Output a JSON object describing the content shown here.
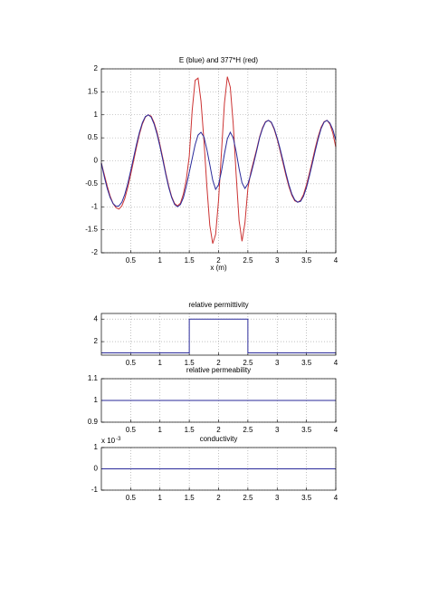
{
  "chart_data": [
    {
      "type": "line",
      "title": "E (blue) and 377*H (red)",
      "x_label": "x (m)",
      "x": [
        0,
        0.05,
        0.1,
        0.15,
        0.2,
        0.25,
        0.3,
        0.35,
        0.4,
        0.45,
        0.5,
        0.55,
        0.6,
        0.65,
        0.7,
        0.75,
        0.8,
        0.85,
        0.9,
        0.95,
        1,
        1.05,
        1.1,
        1.15,
        1.2,
        1.25,
        1.3,
        1.35,
        1.4,
        1.45,
        1.5,
        1.55,
        1.6,
        1.65,
        1.7,
        1.75,
        1.8,
        1.85,
        1.9,
        1.95,
        2,
        2.05,
        2.1,
        2.15,
        2.2,
        2.25,
        2.3,
        2.35,
        2.4,
        2.45,
        2.5,
        2.55,
        2.6,
        2.65,
        2.7,
        2.75,
        2.8,
        2.85,
        2.9,
        2.95,
        3,
        3.05,
        3.1,
        3.15,
        3.2,
        3.25,
        3.3,
        3.35,
        3.4,
        3.45,
        3.5,
        3.55,
        3.6,
        3.65,
        3.7,
        3.75,
        3.8,
        3.85,
        3.9,
        3.95,
        4
      ],
      "series": [
        {
          "color": "#cc3333",
          "values": [
            -0.05,
            -0.3,
            -0.55,
            -0.77,
            -0.93,
            -1.02,
            -1.05,
            -0.98,
            -0.82,
            -0.58,
            -0.3,
            0,
            0.3,
            0.58,
            0.8,
            0.95,
            1,
            0.97,
            0.83,
            0.62,
            0.35,
            0.05,
            -0.27,
            -0.55,
            -0.78,
            -0.93,
            -0.98,
            -0.92,
            -0.72,
            -0.4,
            0.1,
            1.1,
            1.75,
            1.8,
            1.3,
            0.45,
            -0.55,
            -1.4,
            -1.8,
            -1.6,
            -0.85,
            0.2,
            1.25,
            1.83,
            1.6,
            0.8,
            -0.3,
            -1.3,
            -1.75,
            -1.35,
            -0.6,
            -0.25,
            0,
            0.25,
            0.52,
            0.72,
            0.85,
            0.88,
            0.83,
            0.68,
            0.47,
            0.22,
            -0.05,
            -0.32,
            -0.56,
            -0.75,
            -0.87,
            -0.9,
            -0.86,
            -0.73,
            -0.52,
            -0.27,
            0,
            0.28,
            0.53,
            0.73,
            0.85,
            0.88,
            0.8,
            0.6,
            0.3
          ]
        },
        {
          "color": "#2a2a9a",
          "values": [
            -0.05,
            -0.35,
            -0.6,
            -0.8,
            -0.93,
            -0.99,
            -0.98,
            -0.9,
            -0.73,
            -0.5,
            -0.22,
            0.07,
            0.36,
            0.62,
            0.83,
            0.96,
            1,
            0.95,
            0.8,
            0.58,
            0.31,
            0.01,
            -0.3,
            -0.58,
            -0.8,
            -0.95,
            -1,
            -0.95,
            -0.8,
            -0.55,
            -0.25,
            0.05,
            0.35,
            0.56,
            0.62,
            0.52,
            0.25,
            -0.08,
            -0.42,
            -0.62,
            -0.52,
            -0.22,
            0.15,
            0.48,
            0.62,
            0.5,
            0.2,
            -0.17,
            -0.48,
            -0.6,
            -0.5,
            -0.3,
            -0.05,
            0.22,
            0.5,
            0.7,
            0.84,
            0.88,
            0.84,
            0.7,
            0.5,
            0.26,
            0,
            -0.27,
            -0.52,
            -0.72,
            -0.85,
            -0.9,
            -0.88,
            -0.77,
            -0.58,
            -0.33,
            -0.06,
            0.22,
            0.48,
            0.7,
            0.84,
            0.88,
            0.82,
            0.68,
            0.45
          ]
        }
      ],
      "xlim": [
        0,
        4
      ],
      "xticks": [
        0.5,
        1,
        1.5,
        2,
        2.5,
        3,
        3.5,
        4
      ],
      "ylim": [
        -2,
        2
      ],
      "yticks": [
        -2,
        -1.5,
        -1,
        -0.5,
        0,
        0.5,
        1,
        1.5,
        2
      ],
      "grid": true
    },
    {
      "type": "line",
      "title": "relative permittivity",
      "x": [
        0,
        1.5,
        1.5,
        2.5,
        2.5,
        4
      ],
      "series": [
        {
          "color": "#2a2a9a",
          "values": [
            1,
            1,
            4,
            4,
            1,
            1
          ]
        }
      ],
      "xlim": [
        0,
        4
      ],
      "xticks": [
        0.5,
        1,
        1.5,
        2,
        2.5,
        3,
        3.5,
        4
      ],
      "ylim": [
        0.8,
        4.5
      ],
      "yticks": [
        2,
        4
      ],
      "grid": true
    },
    {
      "type": "line",
      "title": "relative permeability",
      "x": [
        0,
        4
      ],
      "series": [
        {
          "color": "#2a2a9a",
          "values": [
            1,
            1
          ]
        }
      ],
      "xlim": [
        0,
        4
      ],
      "xticks": [
        0.5,
        1,
        1.5,
        2,
        2.5,
        3,
        3.5,
        4
      ],
      "ylim": [
        0.9,
        1.1
      ],
      "yticks": [
        0.9,
        1,
        1.1
      ],
      "grid": true
    },
    {
      "type": "line",
      "title": "conductivity",
      "y_multiplier": {
        "base": "x 10",
        "exponent": "-3"
      },
      "x": [
        0,
        4
      ],
      "series": [
        {
          "color": "#2a2a9a",
          "values": [
            0,
            0
          ]
        }
      ],
      "xlim": [
        0,
        4
      ],
      "xticks": [
        0.5,
        1,
        1.5,
        2,
        2.5,
        3,
        3.5,
        4
      ],
      "ylim": [
        -0.001,
        0.001
      ],
      "yticks": [
        {
          "value": -0.001,
          "label": "-1"
        },
        {
          "value": 0,
          "label": "0"
        },
        {
          "value": 0.001,
          "label": "1"
        }
      ],
      "grid": true
    }
  ]
}
